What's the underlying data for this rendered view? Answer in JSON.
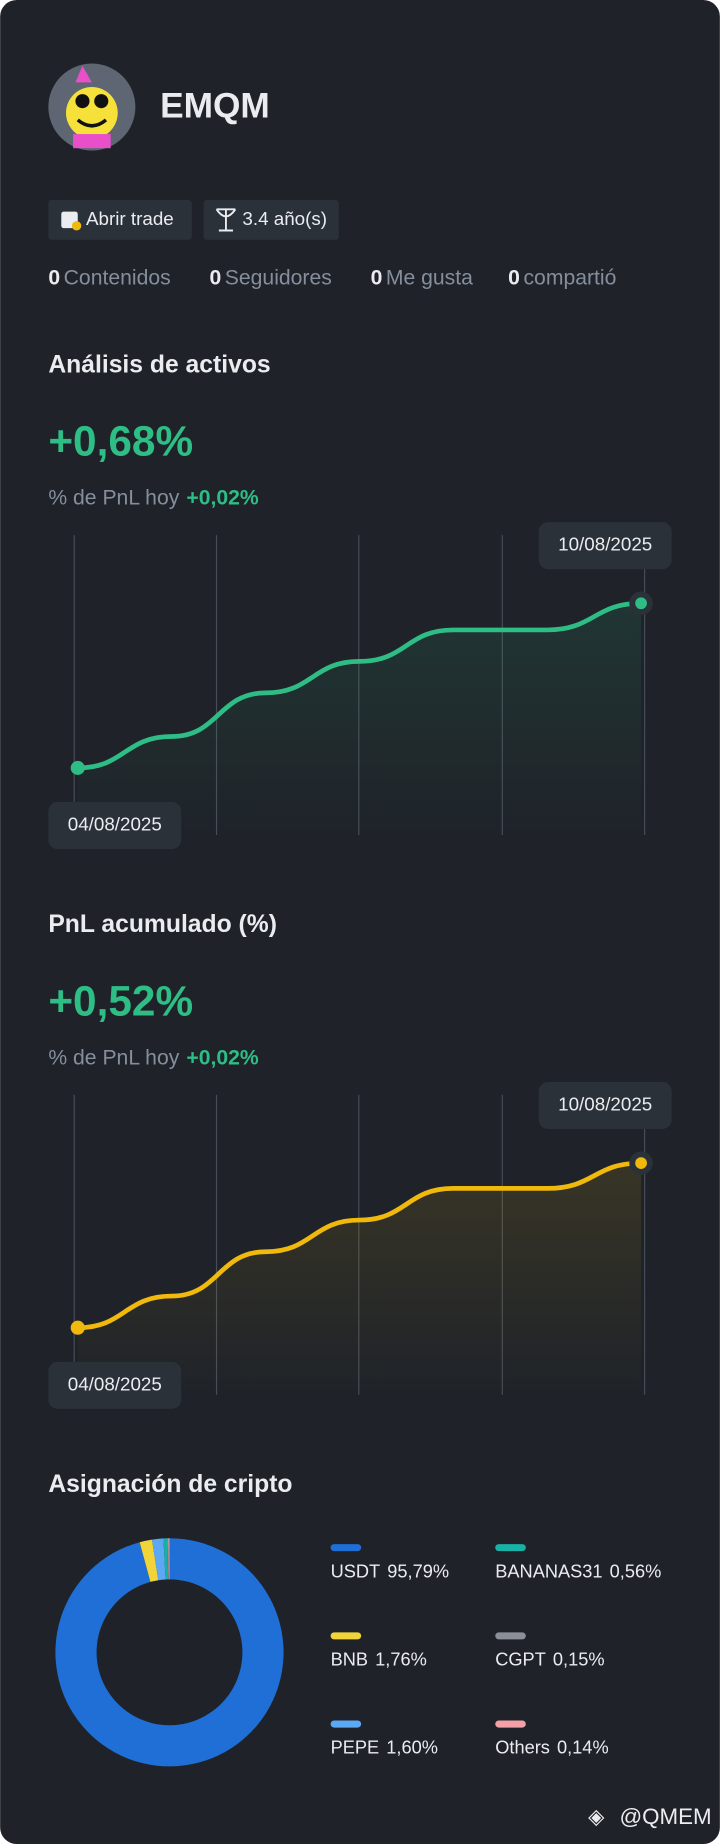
{
  "profile": {
    "name": "EMQM",
    "badges": [
      "Abrir trade",
      "3.4 año(s)"
    ],
    "stats": [
      {
        "count": 0,
        "label": "Contenidos"
      },
      {
        "count": 0,
        "label": "Seguidores"
      },
      {
        "count": 0,
        "label": "Me gusta"
      },
      {
        "count": 0,
        "label": "compartió"
      }
    ]
  },
  "chart_data": [
    {
      "type": "line",
      "title": "Análisis de activos",
      "headline": "+0,68%",
      "subtitle": "% de PnL hoy",
      "change": "+0,02%",
      "x": [
        "04/08/2025",
        null,
        null,
        null,
        null,
        null,
        "10/08/2025"
      ],
      "series": [
        {
          "color": "#2ebd85",
          "values": [
            0,
            0.13,
            0.31,
            0.44,
            0.57,
            0.57,
            0.68
          ]
        }
      ]
    },
    {
      "type": "line",
      "title": "PnL acumulado (%)",
      "headline": "+0,52%",
      "subtitle": "% de PnL hoy",
      "change": "+0,02%",
      "x": [
        "04/08/2025",
        null,
        null,
        null,
        null,
        null,
        "10/08/2025"
      ],
      "series": [
        {
          "color": "#f0b90b",
          "values": [
            0,
            0.1,
            0.24,
            0.34,
            0.44,
            0.44,
            0.52
          ]
        }
      ]
    },
    {
      "type": "donut",
      "title": "Asignación de cripto",
      "categories": [
        "USDT",
        "BNB",
        "PEPE",
        "BANANAS31",
        "CGPT",
        "Others"
      ],
      "values": [
        95.79,
        1.76,
        1.6,
        0.56,
        0.15,
        0.14
      ],
      "value_labels": [
        "95,79%",
        "1,76%",
        "1,60%",
        "0,56%",
        "0,15%",
        "0,14%"
      ],
      "colors": [
        "#1f6fd6",
        "#f0d43a",
        "#5ba8f5",
        "#17b1a6",
        "#8a8f98",
        "#f3a0a8"
      ]
    }
  ],
  "footer": "@QMEM"
}
